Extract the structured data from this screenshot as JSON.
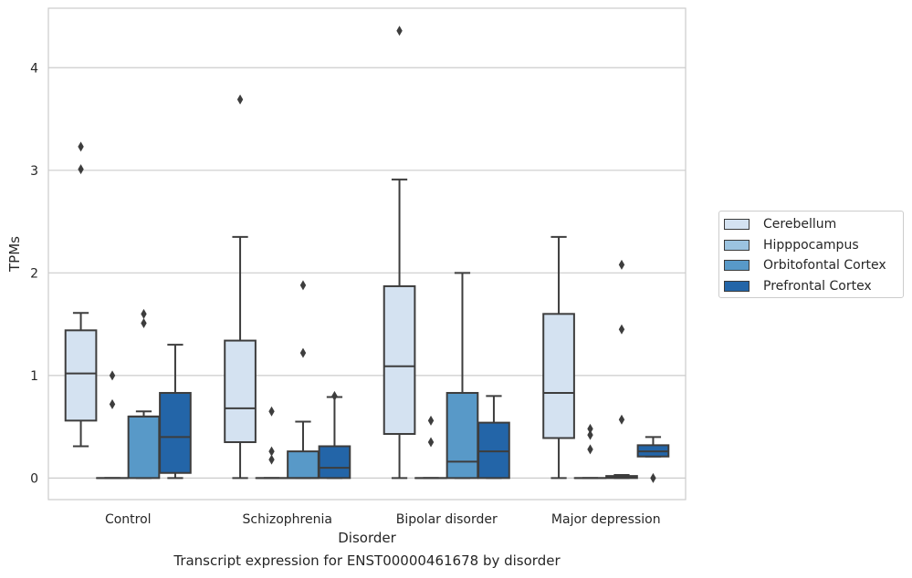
{
  "caption": "Transcript expression for ENST00000461678 by disorder",
  "chart_data": {
    "type": "boxplot",
    "title": "",
    "xlabel": "Disorder",
    "ylabel": "TPMs",
    "ylim": [
      -0.21,
      4.58
    ],
    "yticks": [
      0,
      1,
      2,
      3,
      4
    ],
    "grid": "horizontal",
    "legend_position": "right",
    "categories": [
      "Control",
      "Schizophrenia",
      "Bipolar disorder",
      "Major depression"
    ],
    "series": [
      {
        "name": "Cerebellum",
        "color": "#d4e2f1",
        "boxes": [
          {
            "whisker_low": 0.31,
            "q1": 0.56,
            "median": 1.02,
            "q3": 1.44,
            "whisker_high": 1.61,
            "outliers": [
              3.01,
              3.23
            ]
          },
          {
            "whisker_low": 0.0,
            "q1": 0.35,
            "median": 0.68,
            "q3": 1.34,
            "whisker_high": 2.35,
            "outliers": [
              3.69
            ]
          },
          {
            "whisker_low": 0.0,
            "q1": 0.43,
            "median": 1.09,
            "q3": 1.87,
            "whisker_high": 2.91,
            "outliers": [
              4.36
            ]
          },
          {
            "whisker_low": 0.0,
            "q1": 0.39,
            "median": 0.83,
            "q3": 1.6,
            "whisker_high": 2.35,
            "outliers": []
          }
        ]
      },
      {
        "name": "Hipppocampus",
        "color": "#9bc3e0",
        "boxes": [
          {
            "whisker_low": 0.0,
            "q1": 0.0,
            "median": 0.0,
            "q3": 0.0,
            "whisker_high": 0.0,
            "outliers": [
              0.72,
              1.0
            ]
          },
          {
            "whisker_low": 0.0,
            "q1": 0.0,
            "median": 0.0,
            "q3": 0.0,
            "whisker_high": 0.0,
            "outliers": [
              0.18,
              0.26,
              0.65
            ]
          },
          {
            "whisker_low": 0.0,
            "q1": 0.0,
            "median": 0.0,
            "q3": 0.0,
            "whisker_high": 0.0,
            "outliers": [
              0.35,
              0.56
            ]
          },
          {
            "whisker_low": 0.0,
            "q1": 0.0,
            "median": 0.0,
            "q3": 0.0,
            "whisker_high": 0.0,
            "outliers": [
              0.28,
              0.42,
              0.48
            ]
          }
        ]
      },
      {
        "name": "Orbitofontal Cortex",
        "color": "#5899c8",
        "boxes": [
          {
            "whisker_low": 0.0,
            "q1": 0.0,
            "median": 0.6,
            "q3": 0.6,
            "whisker_high": 0.65,
            "outliers": [
              1.51,
              1.6
            ]
          },
          {
            "whisker_low": 0.0,
            "q1": 0.0,
            "median": 0.0,
            "q3": 0.26,
            "whisker_high": 0.55,
            "outliers": [
              1.22,
              1.88
            ]
          },
          {
            "whisker_low": 0.0,
            "q1": 0.0,
            "median": 0.16,
            "q3": 0.83,
            "whisker_high": 2.0,
            "outliers": []
          },
          {
            "whisker_low": 0.0,
            "q1": 0.0,
            "median": 0.01,
            "q3": 0.02,
            "whisker_high": 0.03,
            "outliers": [
              0.57,
              1.45,
              2.08
            ]
          }
        ]
      },
      {
        "name": "Prefrontal Cortex",
        "color": "#2365a8",
        "boxes": [
          {
            "whisker_low": 0.0,
            "q1": 0.05,
            "median": 0.4,
            "q3": 0.83,
            "whisker_high": 1.3,
            "outliers": []
          },
          {
            "whisker_low": 0.0,
            "q1": 0.0,
            "median": 0.1,
            "q3": 0.31,
            "whisker_high": 0.79,
            "outliers": [
              0.8
            ]
          },
          {
            "whisker_low": 0.0,
            "q1": 0.0,
            "median": 0.26,
            "q3": 0.54,
            "whisker_high": 0.8,
            "outliers": []
          },
          {
            "whisker_low": 0.21,
            "q1": 0.21,
            "median": 0.26,
            "q3": 0.32,
            "whisker_high": 0.4,
            "outliers": [
              0.0
            ]
          }
        ]
      }
    ]
  }
}
